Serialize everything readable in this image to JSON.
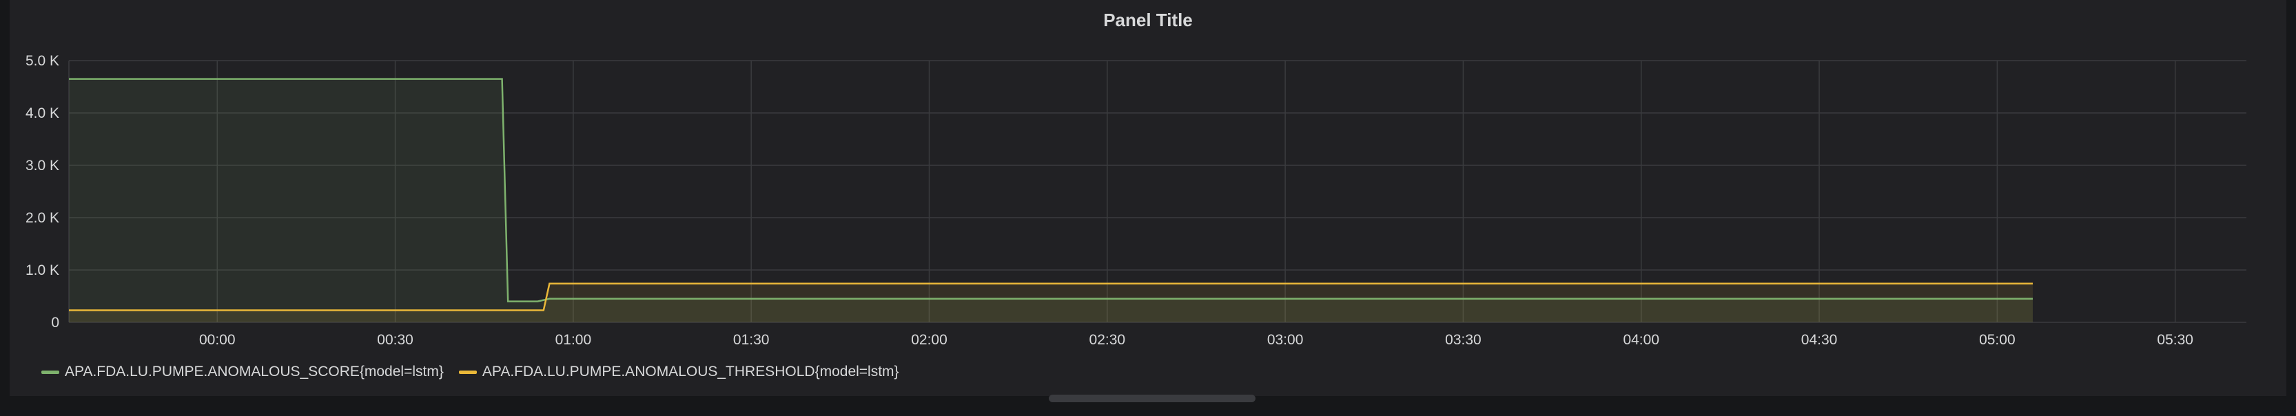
{
  "panel": {
    "title": "Panel Title"
  },
  "colors": {
    "background": "#212124",
    "grid": "#3a3b3e",
    "score": "#7eb26d",
    "threshold": "#eab839",
    "text": "#d8d9da"
  },
  "chart_data": {
    "type": "line",
    "title": "Panel Title",
    "xlabel": "",
    "ylabel": "",
    "x_unit": "time (HH:MM)",
    "xlim": [
      "23:35",
      "05:42"
    ],
    "ylim": [
      0,
      5000
    ],
    "x_ticks": [
      "00:00",
      "00:30",
      "01:00",
      "01:30",
      "02:00",
      "02:30",
      "03:00",
      "03:30",
      "04:00",
      "04:30",
      "05:00",
      "05:30"
    ],
    "y_ticks": [
      {
        "value": 0,
        "label": "0"
      },
      {
        "value": 1000,
        "label": "1.0 K"
      },
      {
        "value": 2000,
        "label": "2.0 K"
      },
      {
        "value": 3000,
        "label": "3.0 K"
      },
      {
        "value": 4000,
        "label": "4.0 K"
      },
      {
        "value": 5000,
        "label": "5.0 K"
      }
    ],
    "grid": true,
    "legend_position": "bottom-left",
    "series": [
      {
        "name": "APA.FDA.LU.PUMPE.ANOMALOUS_SCORE{model=lstm}",
        "color": "#7eb26d",
        "fill": true,
        "points": [
          {
            "x": "23:35",
            "y": 4650
          },
          {
            "x": "00:48",
            "y": 4650
          },
          {
            "x": "00:49",
            "y": 400
          },
          {
            "x": "00:54",
            "y": 400
          },
          {
            "x": "00:56",
            "y": 450
          },
          {
            "x": "05:06",
            "y": 450
          }
        ]
      },
      {
        "name": "APA.FDA.LU.PUMPE.ANOMALOUS_THRESHOLD{model=lstm}",
        "color": "#eab839",
        "fill": true,
        "points": [
          {
            "x": "23:35",
            "y": 230
          },
          {
            "x": "00:55",
            "y": 230
          },
          {
            "x": "00:56",
            "y": 740
          },
          {
            "x": "05:06",
            "y": 740
          }
        ]
      }
    ]
  }
}
